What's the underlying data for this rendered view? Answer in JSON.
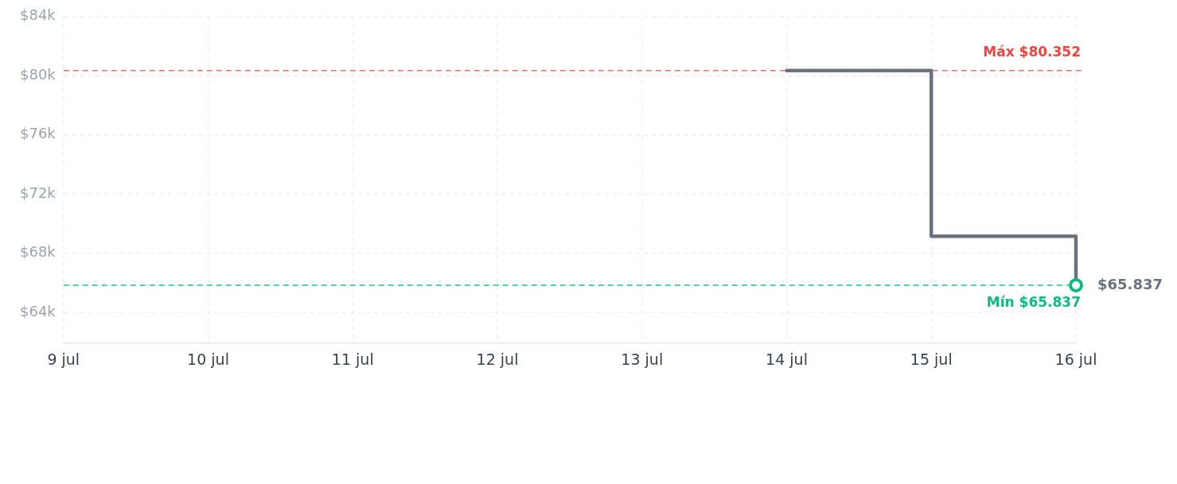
{
  "chart_data": {
    "type": "step",
    "xlim": [
      "--07-09",
      "--07-16"
    ],
    "xticks": [
      {
        "value": "--07-09",
        "label": "9 jul"
      },
      {
        "value": "--07-10",
        "label": "10 jul"
      },
      {
        "value": "--07-11",
        "label": "11 jul"
      },
      {
        "value": "--07-12",
        "label": "12 jul"
      },
      {
        "value": "--07-13",
        "label": "13 jul"
      },
      {
        "value": "--07-14",
        "label": "14 jul"
      },
      {
        "value": "--07-15",
        "label": "15 jul"
      },
      {
        "value": "--07-16",
        "label": "16 jul"
      }
    ],
    "ylim": [
      61900,
      84000
    ],
    "yticks": [
      {
        "value": 64000,
        "label": "$64k"
      },
      {
        "value": 68000,
        "label": "$68k"
      },
      {
        "value": 72000,
        "label": "$72k"
      },
      {
        "value": 76000,
        "label": "$76k"
      },
      {
        "value": 80000,
        "label": "$80k"
      },
      {
        "value": 84000,
        "label": "$84k"
      }
    ],
    "grid": true,
    "marker": "none",
    "series": [
      {
        "color": "#6b7280",
        "x": [
          "--07-14",
          "--07-15",
          "--07-16"
        ],
        "values": [
          80352,
          69150,
          65837
        ],
        "value_labels": [
          null,
          null,
          "$65.837"
        ]
      },
      {
        "type": "scatter",
        "marker": "circle",
        "color": "#10b981",
        "x": [
          "--07-16"
        ],
        "values": [
          65837
        ]
      }
    ],
    "ref_lines": [
      {
        "axis": "y",
        "value": 80352,
        "label": "Máx $80.352",
        "color": "#ef4444",
        "line_style": "dashed"
      },
      {
        "axis": "y",
        "value": 65837,
        "label": "Mín $65.837",
        "color": "#10b981",
        "line_style": "dashed"
      }
    ]
  }
}
